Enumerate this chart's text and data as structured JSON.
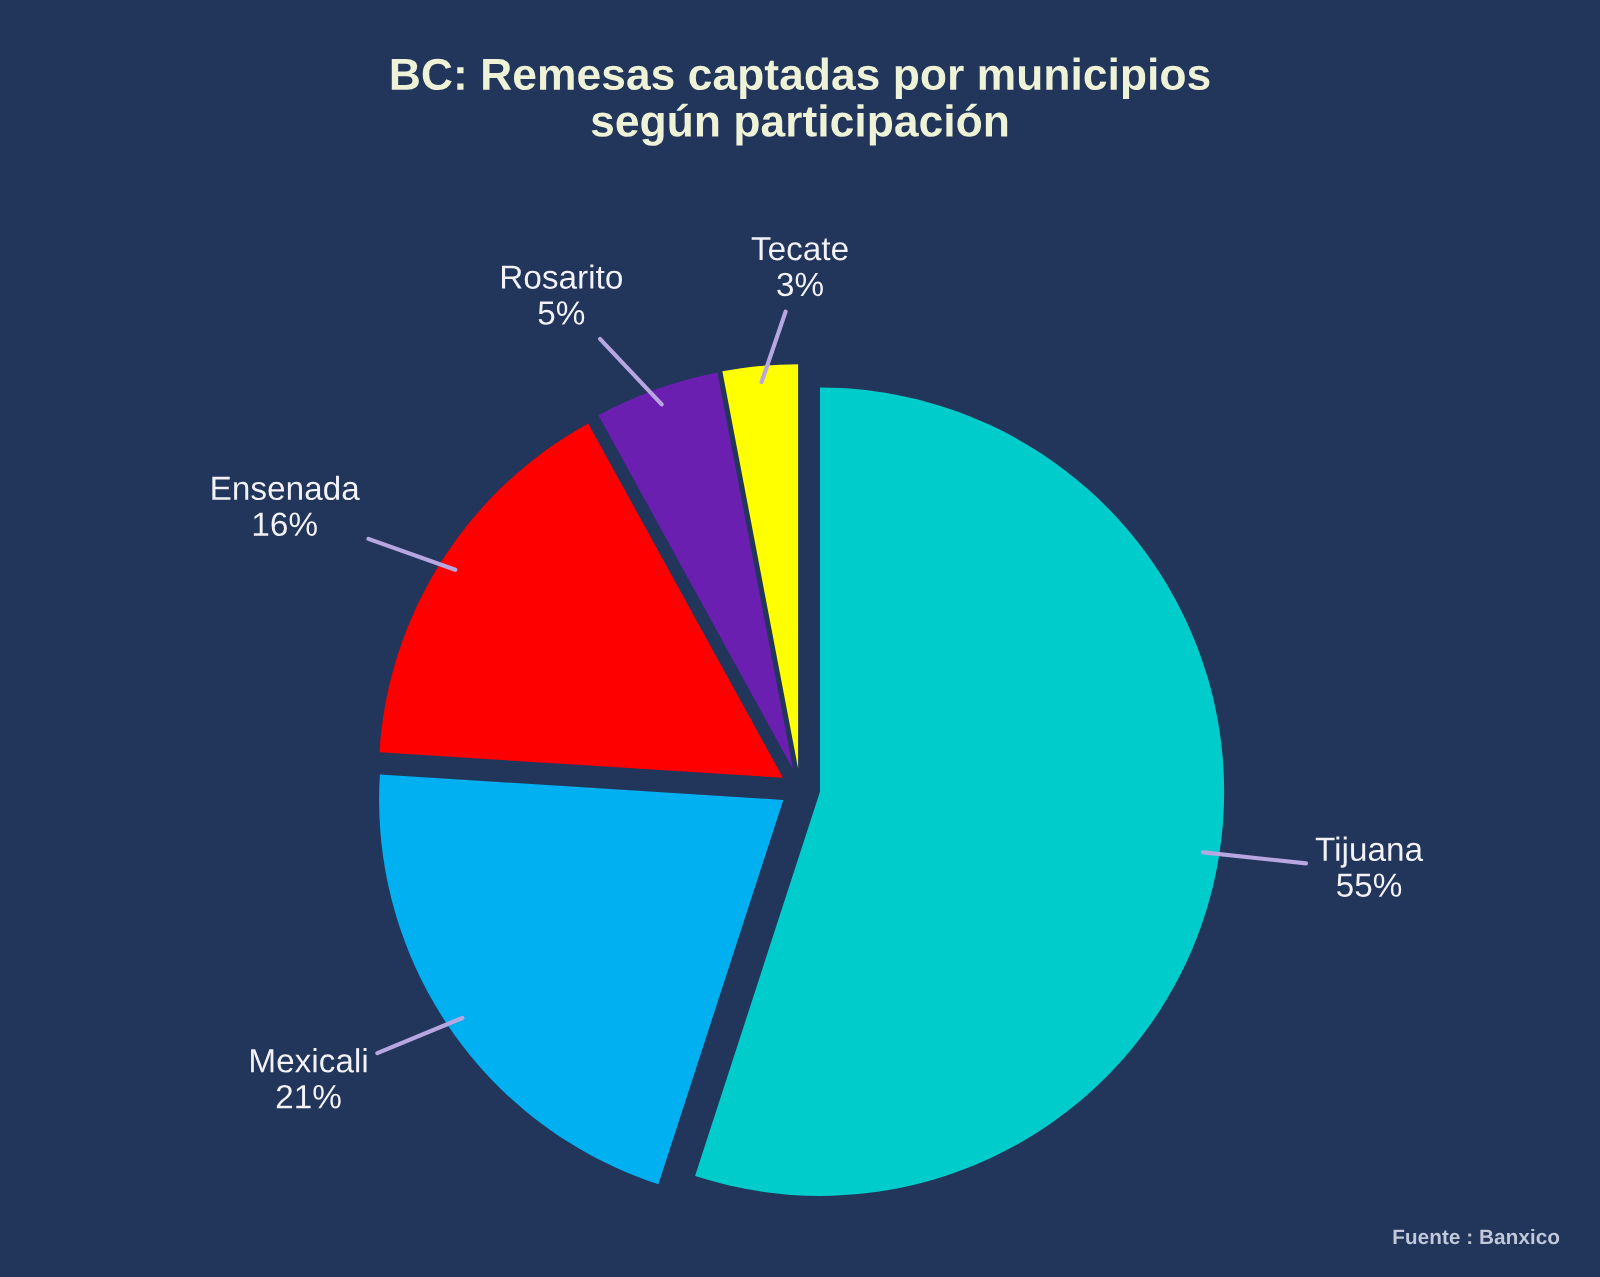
{
  "chart_data": {
    "type": "pie",
    "title": "BC: Remesas captadas por municipios\nsegún participación",
    "categories": [
      "Tijuana",
      "Mexicali",
      "Ensenada",
      "Rosarito",
      "Tecate"
    ],
    "values": [
      55,
      21,
      16,
      5,
      3
    ],
    "value_labels": [
      "55%",
      "21%",
      "16%",
      "5%",
      "3%"
    ],
    "colors": [
      "#00cccc",
      "#00b0f0",
      "#ff0000",
      "#6a1fb0",
      "#ffff00"
    ],
    "annotations": [
      "Fuente : Banxico"
    ]
  }
}
